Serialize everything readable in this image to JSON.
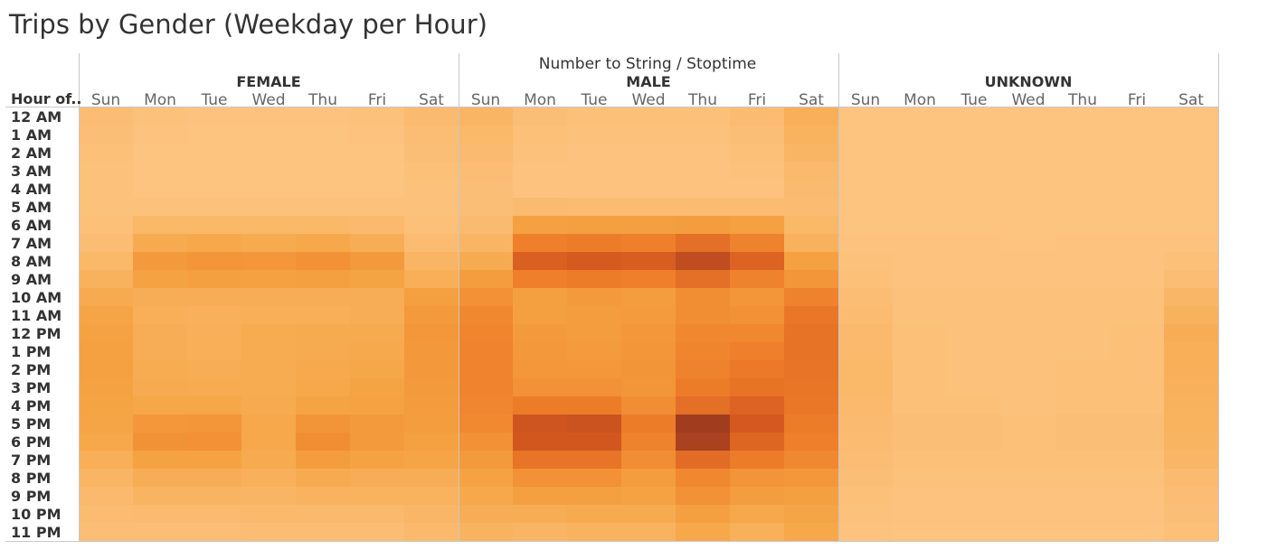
{
  "chart_data": {
    "type": "heatmap",
    "title": "Trips by Gender (Weekday per Hour)",
    "column_header": "Number to String / Stoptime",
    "row_header": "Hour of..",
    "groups": [
      "FEMALE",
      "MALE",
      "UNKNOWN"
    ],
    "days": [
      "Sun",
      "Mon",
      "Tue",
      "Wed",
      "Thu",
      "Fri",
      "Sat"
    ],
    "hours": [
      "12 AM",
      "1 AM",
      "2 AM",
      "3 AM",
      "4 AM",
      "5 AM",
      "6 AM",
      "7 AM",
      "8 AM",
      "9 AM",
      "10 AM",
      "11 AM",
      "12 PM",
      "1 PM",
      "2 PM",
      "3 PM",
      "4 PM",
      "5 PM",
      "6 PM",
      "7 PM",
      "8 PM",
      "9 PM",
      "10 PM",
      "11 PM"
    ],
    "value_scale": [
      0,
      100
    ],
    "color_range": [
      "#fdc583",
      "#a03d1f"
    ],
    "values": {
      "FEMALE": [
        [
          6,
          3,
          2,
          2,
          2,
          3,
          8
        ],
        [
          5,
          2,
          1,
          1,
          1,
          2,
          6
        ],
        [
          4,
          1,
          1,
          1,
          1,
          1,
          5
        ],
        [
          3,
          1,
          1,
          1,
          1,
          1,
          4
        ],
        [
          3,
          1,
          1,
          1,
          1,
          1,
          3
        ],
        [
          3,
          3,
          3,
          3,
          3,
          3,
          3
        ],
        [
          4,
          10,
          10,
          10,
          10,
          9,
          4
        ],
        [
          6,
          20,
          22,
          20,
          22,
          18,
          7
        ],
        [
          10,
          32,
          35,
          34,
          38,
          32,
          12
        ],
        [
          15,
          26,
          28,
          27,
          28,
          25,
          17
        ],
        [
          20,
          18,
          18,
          18,
          18,
          18,
          28
        ],
        [
          24,
          17,
          16,
          17,
          17,
          18,
          32
        ],
        [
          26,
          18,
          17,
          19,
          20,
          20,
          34
        ],
        [
          27,
          18,
          17,
          19,
          20,
          21,
          33
        ],
        [
          27,
          19,
          18,
          19,
          21,
          23,
          33
        ],
        [
          26,
          20,
          19,
          19,
          22,
          25,
          32
        ],
        [
          25,
          23,
          23,
          20,
          25,
          26,
          31
        ],
        [
          24,
          34,
          35,
          22,
          36,
          32,
          30
        ],
        [
          22,
          37,
          38,
          22,
          40,
          32,
          27
        ],
        [
          17,
          26,
          26,
          20,
          30,
          26,
          24
        ],
        [
          12,
          18,
          18,
          16,
          20,
          18,
          18
        ],
        [
          9,
          13,
          13,
          12,
          14,
          14,
          14
        ],
        [
          7,
          8,
          8,
          9,
          9,
          9,
          11
        ],
        [
          5,
          5,
          5,
          6,
          6,
          6,
          9
        ]
      ],
      "MALE": [
        [
          12,
          5,
          4,
          4,
          4,
          7,
          17
        ],
        [
          10,
          4,
          3,
          3,
          3,
          5,
          14
        ],
        [
          8,
          3,
          2,
          2,
          2,
          4,
          12
        ],
        [
          6,
          2,
          2,
          2,
          2,
          3,
          9
        ],
        [
          5,
          2,
          2,
          2,
          2,
          2,
          8
        ],
        [
          5,
          8,
          7,
          7,
          7,
          7,
          7
        ],
        [
          8,
          27,
          28,
          28,
          30,
          27,
          10
        ],
        [
          12,
          50,
          52,
          50,
          60,
          48,
          15
        ],
        [
          20,
          70,
          74,
          72,
          85,
          68,
          27
        ],
        [
          30,
          50,
          52,
          50,
          60,
          48,
          35
        ],
        [
          38,
          28,
          32,
          30,
          40,
          35,
          48
        ],
        [
          44,
          28,
          30,
          31,
          40,
          38,
          55
        ],
        [
          46,
          32,
          30,
          34,
          44,
          44,
          58
        ],
        [
          47,
          33,
          31,
          35,
          46,
          50,
          58
        ],
        [
          47,
          34,
          34,
          36,
          48,
          54,
          57
        ],
        [
          47,
          38,
          38,
          35,
          52,
          58,
          56
        ],
        [
          45,
          52,
          52,
          40,
          60,
          68,
          55
        ],
        [
          43,
          78,
          80,
          52,
          100,
          75,
          52
        ],
        [
          38,
          76,
          76,
          48,
          95,
          66,
          50
        ],
        [
          32,
          57,
          57,
          40,
          62,
          52,
          44
        ],
        [
          26,
          38,
          38,
          30,
          44,
          36,
          34
        ],
        [
          22,
          28,
          28,
          26,
          38,
          30,
          28
        ],
        [
          18,
          18,
          20,
          20,
          28,
          22,
          24
        ],
        [
          14,
          12,
          14,
          14,
          22,
          16,
          22
        ]
      ],
      "UNKNOWN": [
        [
          1,
          1,
          1,
          1,
          1,
          1,
          1
        ],
        [
          1,
          1,
          1,
          1,
          1,
          1,
          1
        ],
        [
          1,
          1,
          1,
          1,
          1,
          1,
          1
        ],
        [
          1,
          1,
          1,
          1,
          1,
          1,
          1
        ],
        [
          1,
          1,
          1,
          1,
          1,
          1,
          1
        ],
        [
          1,
          1,
          1,
          1,
          1,
          1,
          1
        ],
        [
          1,
          1,
          1,
          1,
          1,
          1,
          1
        ],
        [
          2,
          2,
          2,
          1,
          2,
          2,
          2
        ],
        [
          3,
          2,
          2,
          2,
          2,
          2,
          4
        ],
        [
          4,
          2,
          2,
          2,
          2,
          2,
          6
        ],
        [
          6,
          3,
          3,
          3,
          3,
          3,
          11
        ],
        [
          7,
          3,
          3,
          3,
          3,
          3,
          15
        ],
        [
          9,
          4,
          3,
          3,
          3,
          4,
          18
        ],
        [
          9,
          4,
          3,
          3,
          3,
          4,
          17
        ],
        [
          10,
          4,
          3,
          3,
          4,
          4,
          17
        ],
        [
          10,
          4,
          3,
          3,
          4,
          4,
          16
        ],
        [
          9,
          4,
          4,
          3,
          4,
          4,
          15
        ],
        [
          8,
          5,
          5,
          4,
          5,
          5,
          14
        ],
        [
          7,
          5,
          5,
          4,
          5,
          5,
          13
        ],
        [
          6,
          4,
          4,
          4,
          4,
          4,
          11
        ],
        [
          5,
          3,
          3,
          3,
          3,
          3,
          8
        ],
        [
          4,
          2,
          2,
          2,
          2,
          2,
          6
        ],
        [
          3,
          2,
          2,
          2,
          2,
          2,
          5
        ],
        [
          2,
          1,
          1,
          1,
          1,
          1,
          4
        ]
      ]
    }
  }
}
